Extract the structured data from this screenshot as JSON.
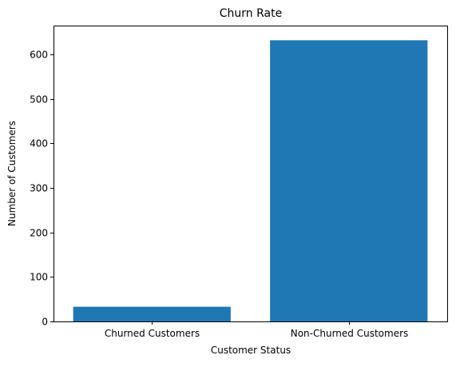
{
  "chart_data": {
    "type": "bar",
    "title": "Churn Rate",
    "xlabel": "Customer Status",
    "ylabel": "Number of Customers",
    "categories": [
      "Churned Customers",
      "Non-Churned Customers"
    ],
    "values": [
      33,
      632
    ],
    "ylim": [
      0,
      665
    ],
    "yticks": [
      0,
      100,
      200,
      300,
      400,
      500,
      600
    ],
    "grid": false,
    "legend": "none",
    "bar_color": "#1f77b4"
  }
}
